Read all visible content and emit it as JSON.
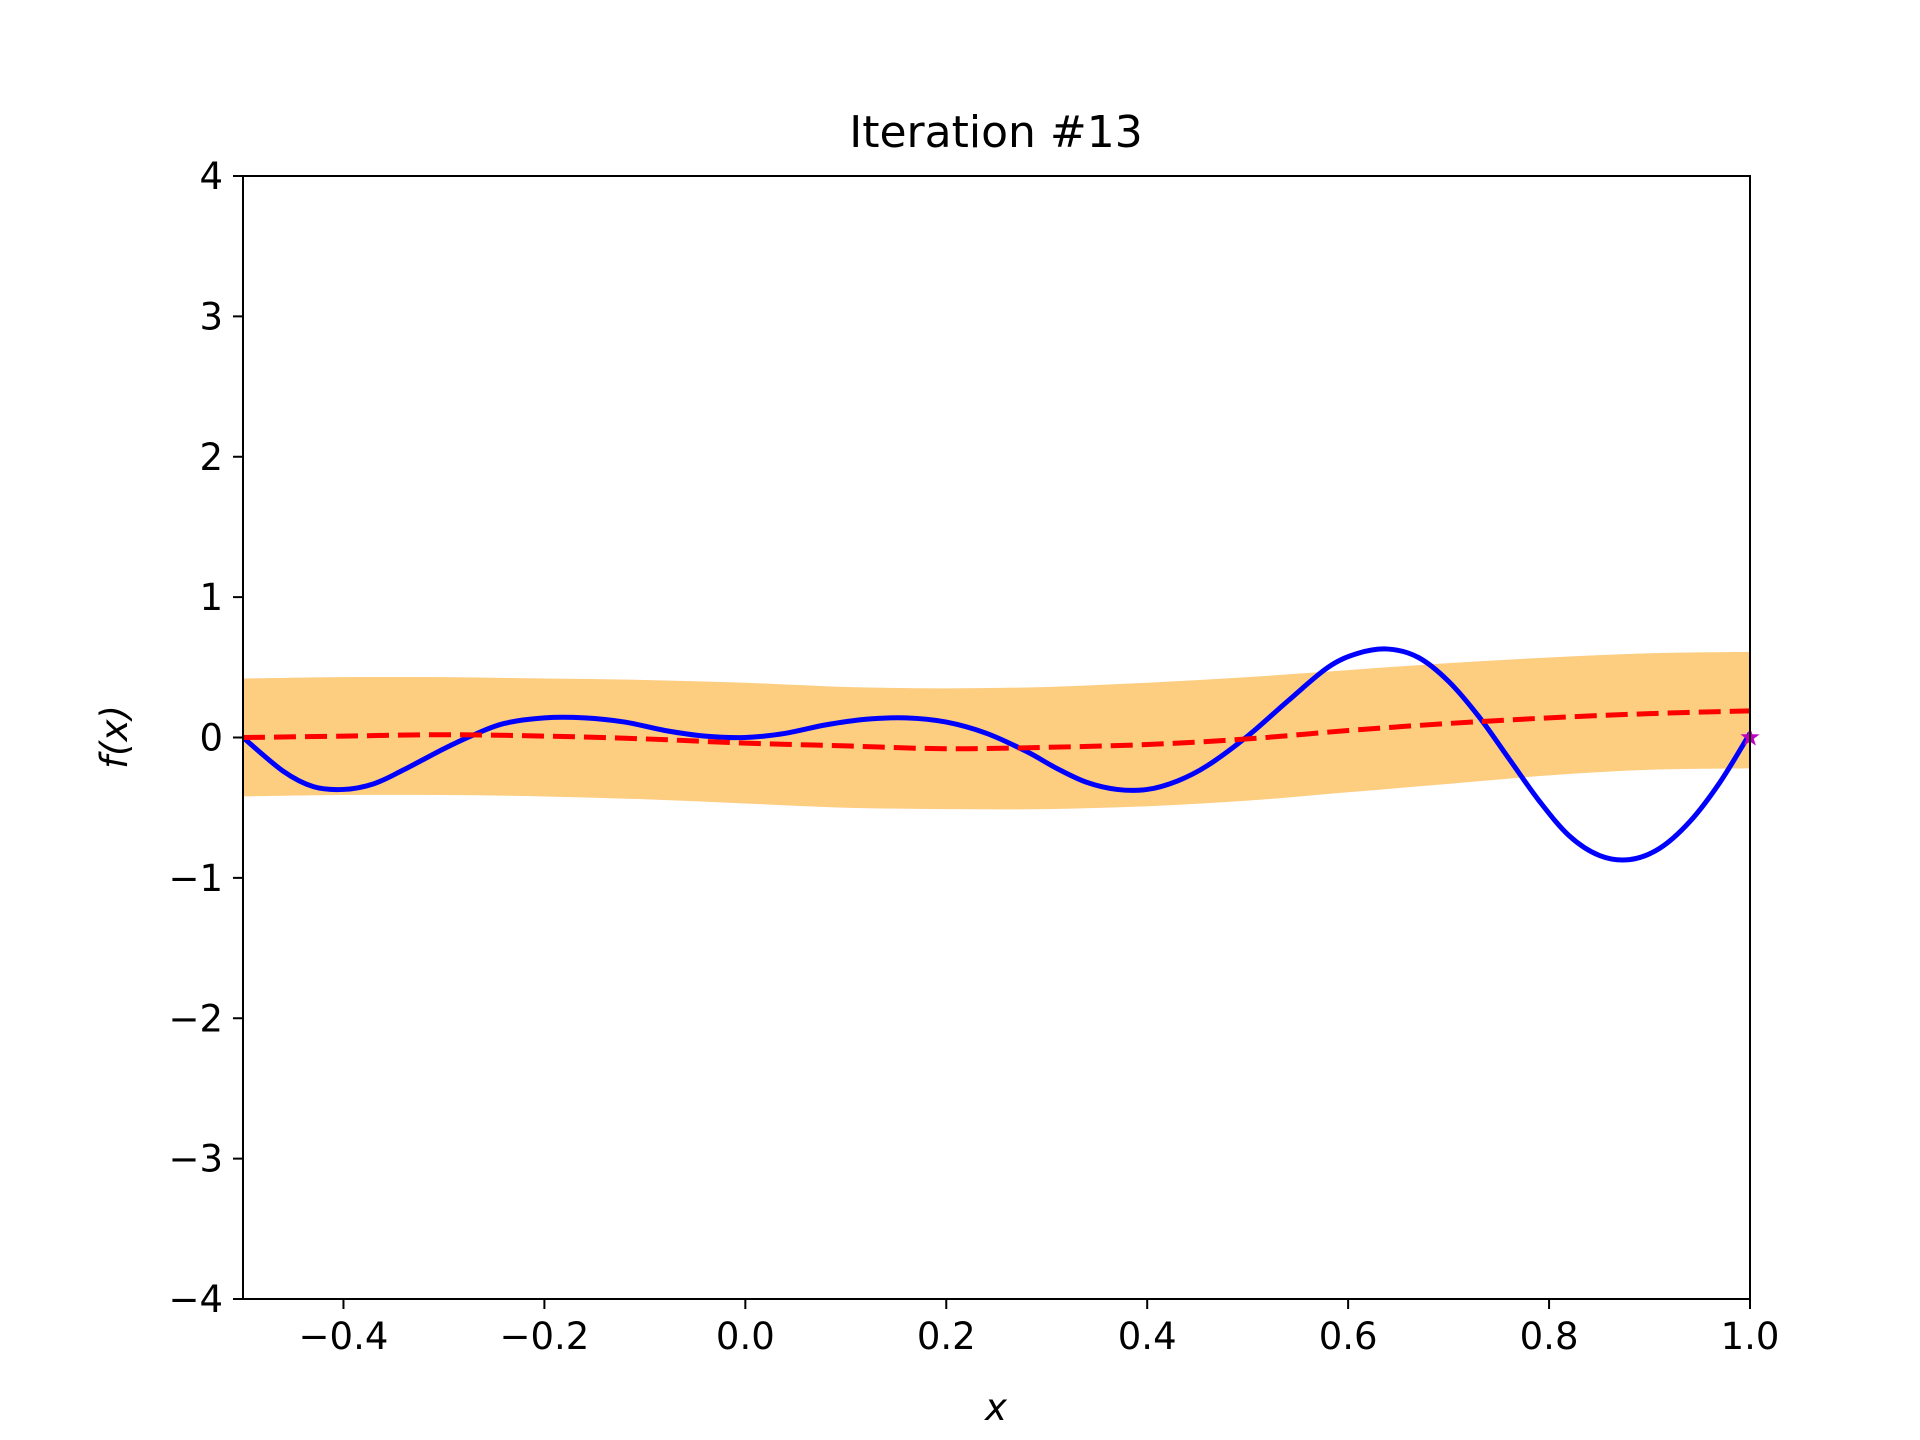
{
  "chart_data": {
    "type": "line",
    "title": "Iteration #13",
    "xlabel": "x",
    "ylabel": "f(x)",
    "xlim": [
      -0.5,
      1.0
    ],
    "ylim": [
      -4,
      4
    ],
    "xticks": [
      {
        "value": -0.4,
        "label": "−0.4"
      },
      {
        "value": -0.2,
        "label": "−0.2"
      },
      {
        "value": 0.0,
        "label": "0.0"
      },
      {
        "value": 0.2,
        "label": "0.2"
      },
      {
        "value": 0.4,
        "label": "0.4"
      },
      {
        "value": 0.6,
        "label": "0.6"
      },
      {
        "value": 0.8,
        "label": "0.8"
      },
      {
        "value": 1.0,
        "label": "1.0"
      }
    ],
    "yticks": [
      {
        "value": -4,
        "label": "−4"
      },
      {
        "value": -3,
        "label": "−3"
      },
      {
        "value": -2,
        "label": "−2"
      },
      {
        "value": -1,
        "label": "−1"
      },
      {
        "value": 0,
        "label": "0"
      },
      {
        "value": 1,
        "label": "1"
      },
      {
        "value": 2,
        "label": "2"
      },
      {
        "value": 3,
        "label": "3"
      },
      {
        "value": 4,
        "label": "4"
      }
    ],
    "grid": false,
    "band": {
      "color": "#fdcd80",
      "x": [
        -0.5,
        -0.4,
        -0.3,
        -0.2,
        -0.1,
        0.0,
        0.1,
        0.2,
        0.3,
        0.4,
        0.5,
        0.6,
        0.7,
        0.8,
        0.9,
        1.0
      ],
      "upper": [
        0.42,
        0.43,
        0.43,
        0.42,
        0.41,
        0.39,
        0.36,
        0.35,
        0.36,
        0.39,
        0.43,
        0.48,
        0.53,
        0.57,
        0.6,
        0.61
      ],
      "lower": [
        -0.42,
        -0.41,
        -0.41,
        -0.42,
        -0.44,
        -0.47,
        -0.5,
        -0.51,
        -0.51,
        -0.49,
        -0.45,
        -0.39,
        -0.33,
        -0.27,
        -0.23,
        -0.22
      ]
    },
    "series": [
      {
        "color": "#0000ff",
        "style": "solid",
        "x": [
          -0.5,
          -0.46,
          -0.43,
          -0.4,
          -0.37,
          -0.34,
          -0.3,
          -0.27,
          -0.24,
          -0.2,
          -0.16,
          -0.12,
          -0.08,
          -0.04,
          0.0,
          0.04,
          0.08,
          0.12,
          0.16,
          0.2,
          0.24,
          0.28,
          0.31,
          0.34,
          0.37,
          0.4,
          0.43,
          0.46,
          0.5,
          0.54,
          0.58,
          0.61,
          0.64,
          0.67,
          0.7,
          0.73,
          0.76,
          0.79,
          0.82,
          0.85,
          0.88,
          0.91,
          0.94,
          0.97,
          1.0
        ],
        "y": [
          0.0,
          -0.24,
          -0.35,
          -0.37,
          -0.33,
          -0.23,
          -0.08,
          0.02,
          0.1,
          0.14,
          0.14,
          0.11,
          0.05,
          0.01,
          0.0,
          0.03,
          0.09,
          0.13,
          0.14,
          0.11,
          0.03,
          -0.1,
          -0.22,
          -0.32,
          -0.37,
          -0.37,
          -0.31,
          -0.2,
          0.01,
          0.26,
          0.5,
          0.6,
          0.63,
          0.57,
          0.4,
          0.15,
          -0.15,
          -0.45,
          -0.7,
          -0.84,
          -0.87,
          -0.79,
          -0.6,
          -0.32,
          0.03
        ]
      },
      {
        "color": "#ff0000",
        "style": "dashed",
        "x": [
          -0.5,
          -0.4,
          -0.3,
          -0.2,
          -0.1,
          0.0,
          0.1,
          0.2,
          0.3,
          0.4,
          0.5,
          0.6,
          0.7,
          0.8,
          0.9,
          1.0
        ],
        "y": [
          0.0,
          0.01,
          0.02,
          0.01,
          -0.01,
          -0.04,
          -0.06,
          -0.08,
          -0.07,
          -0.05,
          -0.01,
          0.05,
          0.1,
          0.14,
          0.17,
          0.19
        ]
      }
    ],
    "markers": [
      {
        "x": 1.0,
        "y": 0.0,
        "color": "#bf00bf",
        "shape": "star"
      }
    ]
  }
}
